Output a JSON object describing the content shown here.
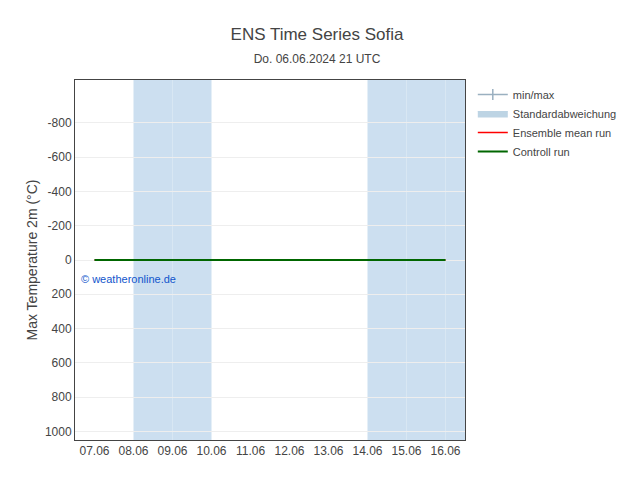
{
  "chart_data": {
    "type": "line",
    "title": "ENS Time Series Sofia",
    "subtitle": "Do. 06.06.2024 21 UTC",
    "ylabel": "Max Temperature 2m (°C)",
    "categories": [
      "07.06",
      "08.06",
      "09.06",
      "10.06",
      "11.06",
      "12.06",
      "13.06",
      "14.06",
      "15.06",
      "16.06"
    ],
    "series": [
      {
        "name": "min/max",
        "type": "line",
        "marker": "line-ns",
        "color": "#9ab0c0",
        "values": [
          null,
          null,
          null,
          null,
          null,
          null,
          null,
          null,
          null,
          null
        ]
      },
      {
        "name": "Standardabweichung",
        "type": "area",
        "color": "#bdd4e4",
        "values": [
          null,
          null,
          null,
          null,
          null,
          null,
          null,
          null,
          null,
          null
        ]
      },
      {
        "name": "Ensemble mean run",
        "type": "line",
        "color": "#ff0000",
        "values": [
          0,
          0,
          0,
          0,
          0,
          0,
          0,
          0,
          0,
          0
        ]
      },
      {
        "name": "Controll run",
        "type": "line",
        "color": "#006600",
        "values": [
          0,
          0,
          0,
          0,
          0,
          0,
          0,
          0,
          0,
          0
        ]
      }
    ],
    "shaded_bands": [
      [
        1,
        2
      ],
      [
        2,
        3
      ],
      [
        7,
        8
      ],
      [
        8,
        9
      ],
      [
        9,
        10
      ]
    ],
    "band_color": "#ccdff0",
    "annotations": [
      "© weatheronline.de"
    ],
    "ylim": [
      1050,
      -1050
    ],
    "yticks": [
      -800,
      -600,
      -400,
      -200,
      0,
      200,
      400,
      600,
      800,
      1000
    ],
    "grid": true,
    "legend": "upper right"
  }
}
